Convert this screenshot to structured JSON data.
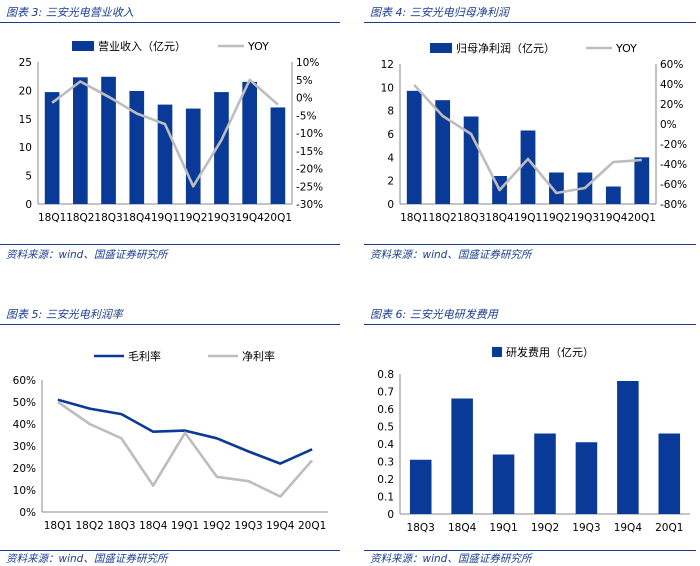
{
  "source_text": "资料来源：wind、国盛证券研究所",
  "colors": {
    "bar": "#0a3a97",
    "line_gray": "#bdbdbd",
    "title": "#1a3d8f"
  },
  "chart_data": [
    {
      "id": "fig3",
      "fig_label": "图表 3:",
      "fig_title": "三安光电营业收入",
      "type": "bar",
      "categories": [
        "18Q1",
        "18Q2",
        "18Q3",
        "18Q4",
        "19Q1",
        "19Q2",
        "19Q3",
        "19Q4",
        "20Q1"
      ],
      "series": [
        {
          "name": "营业收入（亿元）",
          "kind": "bar",
          "axis": "left",
          "values": [
            19.7,
            22.3,
            22.4,
            19.9,
            17.5,
            16.8,
            19.7,
            21.5,
            17.0
          ]
        },
        {
          "name": "YOY",
          "kind": "line",
          "axis": "right",
          "values": [
            -1.5,
            4.5,
            0.2,
            -4.5,
            -7.5,
            -25.0,
            -12.0,
            5.0,
            -2.0
          ]
        }
      ],
      "ylim_left": [
        0,
        25
      ],
      "yticks_left": [
        "0",
        "5",
        "10",
        "15",
        "20",
        "25"
      ],
      "ylim_right": [
        -30,
        10
      ],
      "yticks_right": [
        "-30%",
        "-25%",
        "-20%",
        "-15%",
        "-10%",
        "-5%",
        "0%",
        "5%",
        "10%"
      ]
    },
    {
      "id": "fig4",
      "fig_label": "图表 4:",
      "fig_title": "三安光电归母净利润",
      "type": "bar",
      "categories": [
        "18Q1",
        "18Q2",
        "18Q3",
        "18Q4",
        "19Q1",
        "19Q2",
        "19Q3",
        "19Q4",
        "20Q1"
      ],
      "series": [
        {
          "name": "归母净利润（亿元）",
          "kind": "bar",
          "axis": "left",
          "values": [
            9.7,
            8.9,
            7.5,
            2.4,
            6.3,
            2.7,
            2.7,
            1.5,
            4.0
          ]
        },
        {
          "name": "YOY",
          "kind": "line",
          "axis": "right",
          "values": [
            39,
            8,
            -10,
            -66,
            -35,
            -69,
            -64,
            -38,
            -36
          ]
        }
      ],
      "ylim_left": [
        0,
        12
      ],
      "yticks_left": [
        "0",
        "2",
        "4",
        "6",
        "8",
        "10",
        "12"
      ],
      "ylim_right": [
        -80,
        60
      ],
      "yticks_right": [
        "-80%",
        "-60%",
        "-40%",
        "-20%",
        "0%",
        "20%",
        "40%",
        "60%"
      ]
    },
    {
      "id": "fig5",
      "fig_label": "图表 5:",
      "fig_title": "三安光电利润率",
      "type": "line",
      "categories": [
        "18Q1",
        "18Q2",
        "18Q3",
        "18Q4",
        "19Q1",
        "19Q2",
        "19Q3",
        "19Q4",
        "20Q1"
      ],
      "series": [
        {
          "name": "毛利率",
          "kind": "line",
          "color": "#0a3a97",
          "values": [
            51,
            47,
            44.5,
            36.5,
            37,
            33.5,
            27.5,
            22,
            28.5
          ]
        },
        {
          "name": "净利率",
          "kind": "line",
          "color": "#bdbdbd",
          "values": [
            50,
            40,
            33.5,
            12,
            36,
            16,
            14,
            7,
            23.5
          ]
        }
      ],
      "ylim_left": [
        0,
        60
      ],
      "yticks_left": [
        "0%",
        "10%",
        "20%",
        "30%",
        "40%",
        "50%",
        "60%"
      ]
    },
    {
      "id": "fig6",
      "fig_label": "图表 6:",
      "fig_title": "三安光电研发费用",
      "type": "bar",
      "categories": [
        "18Q3",
        "18Q4",
        "19Q1",
        "19Q2",
        "19Q3",
        "19Q4",
        "20Q1"
      ],
      "series": [
        {
          "name": "研发费用（亿元）",
          "kind": "bar",
          "axis": "left",
          "values": [
            0.31,
            0.66,
            0.34,
            0.46,
            0.41,
            0.76,
            0.46
          ]
        }
      ],
      "ylim_left": [
        0,
        0.8
      ],
      "yticks_left": [
        "0",
        "0.1",
        "0.2",
        "0.3",
        "0.4",
        "0.5",
        "0.6",
        "0.7",
        "0.8"
      ]
    }
  ]
}
